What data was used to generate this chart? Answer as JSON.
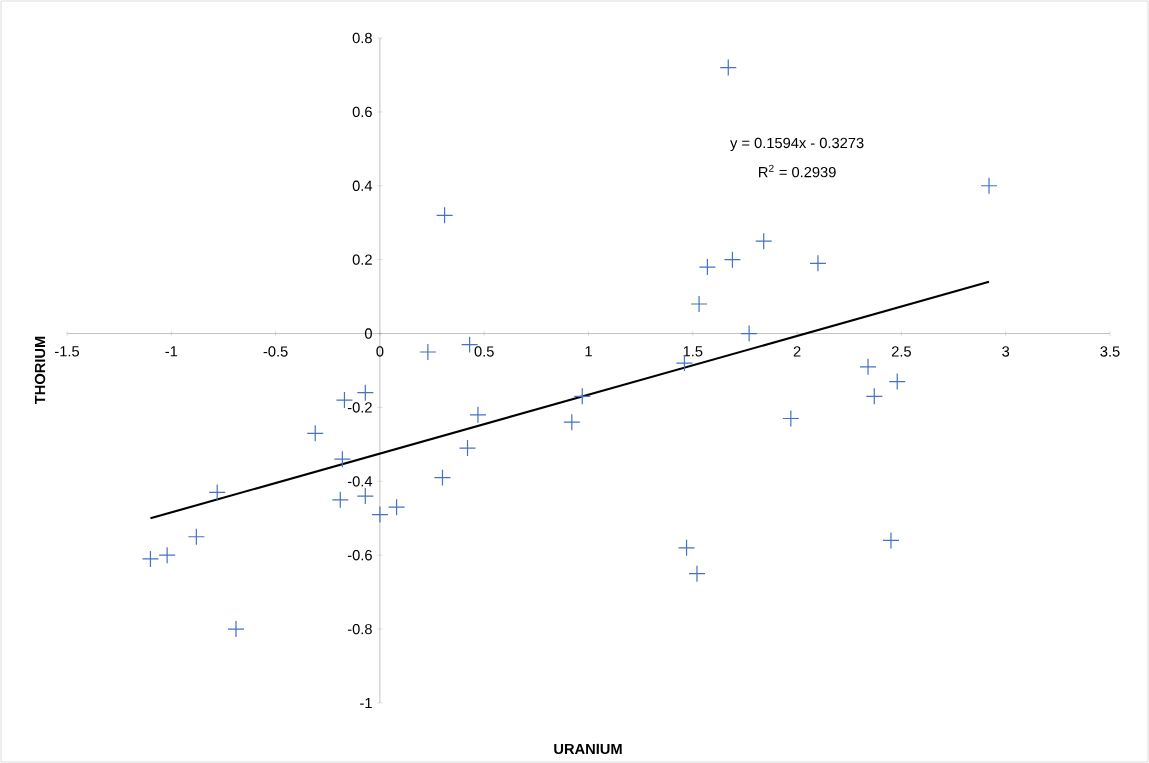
{
  "chart_data": {
    "type": "scatter",
    "xlabel": "URANIUM",
    "ylabel": "THORIUM",
    "annotations": [
      "y = 0.1594x - 0.3273",
      "R$^{2}$ = 0.2939"
    ],
    "xlim": [
      -1.5,
      3.5
    ],
    "xticks": [
      -1.5,
      -1,
      -0.5,
      0,
      0.5,
      1,
      1.5,
      2,
      2.5,
      3,
      3.5
    ],
    "ylim": [
      -1,
      0.8
    ],
    "yticks": [
      -1,
      -0.8,
      -0.6,
      -0.4,
      -0.2,
      0,
      0.2,
      0.4,
      0.6,
      0.8
    ],
    "marker": "cross",
    "series": [
      {
        "color": "#4472c4",
        "x": [
          -1.1,
          -1.02,
          -0.88,
          -0.78,
          -0.69,
          -0.31,
          -0.17,
          -0.18,
          -0.19,
          -0.07,
          -0.07,
          0.0,
          0.08,
          0.23,
          0.31,
          0.3,
          0.43,
          0.42,
          0.47,
          0.92,
          0.97,
          1.46,
          1.47,
          1.52,
          1.53,
          1.57,
          1.67,
          1.69,
          1.77,
          1.84,
          1.97,
          2.1,
          2.34,
          2.37,
          2.45,
          2.48,
          2.92
        ],
        "values": [
          -0.61,
          -0.6,
          -0.55,
          -0.43,
          -0.8,
          -0.27,
          -0.18,
          -0.34,
          -0.45,
          -0.16,
          -0.44,
          -0.49,
          -0.47,
          -0.05,
          0.32,
          -0.39,
          -0.03,
          -0.31,
          -0.22,
          -0.24,
          -0.17,
          -0.08,
          -0.58,
          -0.65,
          0.08,
          0.18,
          0.72,
          0.2,
          0.0,
          0.25,
          -0.23,
          0.19,
          -0.09,
          -0.17,
          -0.56,
          -0.13,
          0.4
        ]
      },
      {
        "type": "line",
        "color": "#000000",
        "marker": "none",
        "x": [
          -1.1,
          2.92
        ],
        "values": [
          -0.5,
          0.14
        ]
      }
    ]
  }
}
